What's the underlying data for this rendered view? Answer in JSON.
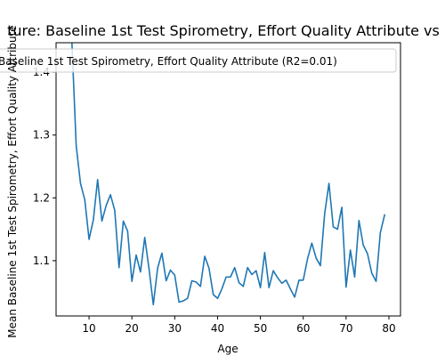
{
  "chart_data": {
    "type": "line",
    "title": "ture: Baseline 1st Test Spirometry, Effort Quality Attribute vs",
    "xlabel": "Age",
    "ylabel": "Mean Baseline 1st Test Spirometry, Effort Quality Attribute",
    "xlim": [
      2.3,
      82.7
    ],
    "ylim": [
      1.012,
      1.447
    ],
    "xticks": [
      10,
      20,
      30,
      40,
      50,
      60,
      70,
      80
    ],
    "yticks": [
      1.1,
      1.2,
      1.3,
      1.4
    ],
    "xtick_labels": [
      "10",
      "20",
      "30",
      "40",
      "50",
      "60",
      "70",
      "80"
    ],
    "ytick_labels": [
      "1.1",
      "1.2",
      "1.3",
      "1.4"
    ],
    "grid": false,
    "legend_position": "top",
    "series": [
      {
        "name": "Baseline 1st Test Spirometry, Effort Quality Attribute (R2=0.01)",
        "color": "#1f77b4",
        "x": [
          6,
          7,
          8,
          9,
          10,
          11,
          12,
          13,
          14,
          15,
          16,
          17,
          18,
          19,
          20,
          21,
          22,
          23,
          24,
          25,
          26,
          27,
          28,
          29,
          30,
          31,
          32,
          33,
          34,
          35,
          36,
          37,
          38,
          39,
          40,
          41,
          42,
          43,
          44,
          45,
          46,
          47,
          48,
          49,
          50,
          51,
          52,
          53,
          54,
          55,
          56,
          57,
          58,
          59,
          60,
          61,
          62,
          63,
          64,
          65,
          66,
          67,
          68,
          69,
          70,
          71,
          72,
          73,
          74,
          75,
          76,
          77,
          78,
          79
        ],
        "y": [
          1.447,
          1.283,
          1.223,
          1.197,
          1.134,
          1.165,
          1.229,
          1.163,
          1.188,
          1.205,
          1.18,
          1.089,
          1.163,
          1.147,
          1.067,
          1.109,
          1.082,
          1.137,
          1.087,
          1.03,
          1.088,
          1.112,
          1.068,
          1.085,
          1.077,
          1.034,
          1.036,
          1.04,
          1.068,
          1.066,
          1.059,
          1.107,
          1.088,
          1.046,
          1.04,
          1.055,
          1.074,
          1.074,
          1.089,
          1.065,
          1.059,
          1.089,
          1.078,
          1.084,
          1.057,
          1.113,
          1.057,
          1.084,
          1.073,
          1.064,
          1.069,
          1.055,
          1.042,
          1.069,
          1.069,
          1.103,
          1.128,
          1.104,
          1.092,
          1.175,
          1.223,
          1.154,
          1.15,
          1.185,
          1.058,
          1.117,
          1.074,
          1.164,
          1.125,
          1.111,
          1.08,
          1.067,
          1.145,
          1.173
        ]
      }
    ]
  }
}
